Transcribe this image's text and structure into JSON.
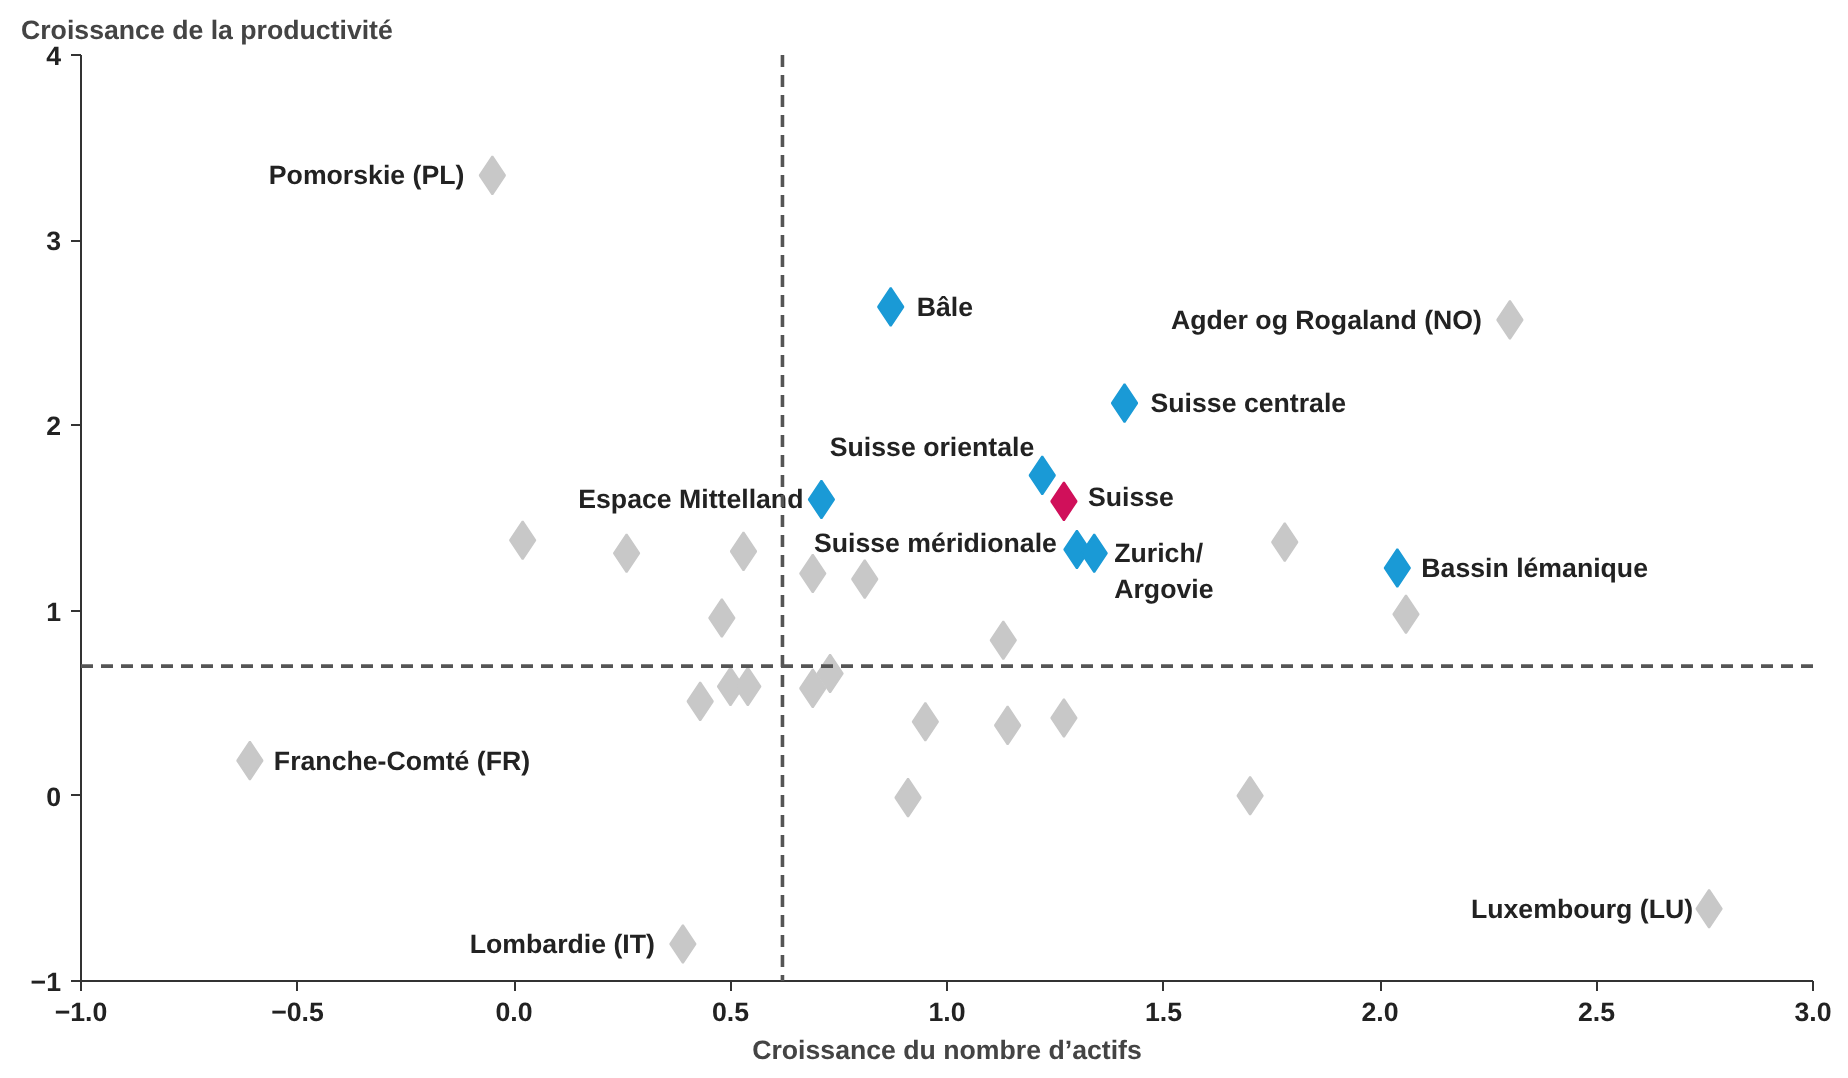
{
  "chart_data": {
    "type": "scatter",
    "xlabel": "Croissance du nombre d’actifs",
    "ylabel": "Croissance de la productivité",
    "xlim": [
      -1.0,
      3.0
    ],
    "ylim": [
      -1,
      4
    ],
    "xticks": [
      {
        "value": -1.0,
        "label": "−1.0"
      },
      {
        "value": -0.5,
        "label": "−0.5"
      },
      {
        "value": 0.0,
        "label": "0.0"
      },
      {
        "value": 0.5,
        "label": "0.5"
      },
      {
        "value": 1.0,
        "label": "1.0"
      },
      {
        "value": 1.5,
        "label": "1.5"
      },
      {
        "value": 2.0,
        "label": "2.0"
      },
      {
        "value": 2.5,
        "label": "2.5"
      },
      {
        "value": 3.0,
        "label": "3.0"
      }
    ],
    "yticks": [
      {
        "value": -1,
        "label": "−1"
      },
      0,
      1,
      2,
      3,
      4
    ],
    "grid": false,
    "marker": "diamond",
    "series": [
      {
        "color": "#c8c8c8",
        "x": [
          -0.05,
          0.02,
          0.26,
          0.53,
          0.48,
          0.69,
          0.81,
          1.13,
          1.78,
          2.06,
          2.3,
          0.43,
          0.5,
          0.54,
          0.69,
          0.73,
          0.95,
          1.14,
          1.27,
          0.91,
          1.7,
          -0.61,
          0.39,
          2.76
        ],
        "values": [
          3.35,
          1.38,
          1.31,
          1.32,
          0.96,
          1.2,
          1.17,
          0.84,
          1.37,
          0.98,
          2.57,
          0.51,
          0.59,
          0.59,
          0.58,
          0.66,
          0.4,
          0.38,
          0.42,
          -0.01,
          0.0,
          0.19,
          -0.8,
          -0.61
        ]
      },
      {
        "color": "#1a9ad6",
        "x": [
          0.87,
          1.41,
          0.71,
          1.22,
          1.3,
          1.34,
          2.04
        ],
        "values": [
          2.64,
          2.12,
          1.6,
          1.73,
          1.33,
          1.31,
          1.23
        ]
      },
      {
        "color": "#d0105a",
        "x": [
          1.27
        ],
        "values": [
          1.59
        ]
      }
    ],
    "ref_lines": [
      {
        "axis": "x",
        "value": 0.62,
        "color": "#555555",
        "line_style": "dashed"
      },
      {
        "axis": "y",
        "value": 0.7,
        "color": "#555555",
        "line_style": "dashed"
      }
    ],
    "annotations": [
      {
        "text": "Pomorskie (PL)",
        "x": -0.05,
        "y": 3.35
      },
      {
        "text": "Agder og Rogaland (NO)",
        "x": 2.3,
        "y": 2.57
      },
      {
        "text": "Franche-Comté (FR)",
        "x": -0.61,
        "y": 0.19
      },
      {
        "text": "Lombardie (IT)",
        "x": 0.39,
        "y": -0.8
      },
      {
        "text": "Luxembourg (LU)",
        "x": 2.76,
        "y": -0.61
      },
      {
        "text": "Bâle",
        "x": 0.87,
        "y": 2.64
      },
      {
        "text": "Suisse centrale",
        "x": 1.41,
        "y": 2.12
      },
      {
        "text": "Espace Mittelland",
        "x": 0.71,
        "y": 1.6
      },
      {
        "text": "Suisse orientale",
        "x": 1.22,
        "y": 1.73
      },
      {
        "text": "Suisse",
        "x": 1.27,
        "y": 1.59
      },
      {
        "text": "Suisse méridionale",
        "x": 1.3,
        "y": 1.33
      },
      {
        "text": "Zurich/\nArgovie",
        "x": 1.34,
        "y": 1.31
      },
      {
        "text": "Bassin lémanique",
        "x": 2.04,
        "y": 1.23
      }
    ]
  }
}
